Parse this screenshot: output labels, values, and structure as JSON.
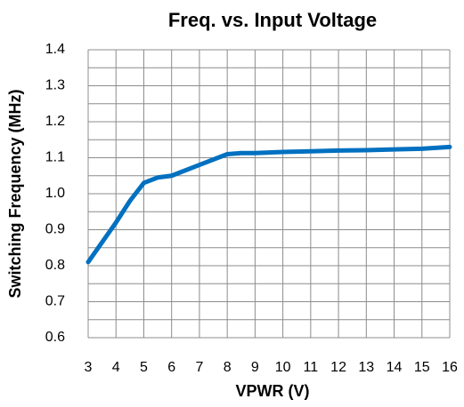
{
  "chart_data": {
    "type": "line",
    "title": "Freq. vs. Input Voltage",
    "xlabel": "VPWR (V)",
    "ylabel": "Switching Frequency (MHz)",
    "x": [
      3,
      4,
      4.5,
      5,
      5.5,
      6,
      7,
      8,
      8.5,
      9,
      10,
      11,
      12,
      13,
      14,
      15,
      16
    ],
    "series": [
      {
        "name": "Switching Frequency",
        "color": "#0070c0",
        "values": [
          0.81,
          0.92,
          0.98,
          1.03,
          1.045,
          1.05,
          1.08,
          1.11,
          1.113,
          1.113,
          1.116,
          1.118,
          1.12,
          1.121,
          1.123,
          1.125,
          1.13
        ]
      }
    ],
    "xlim": [
      3,
      16
    ],
    "xticks": [
      3,
      4,
      5,
      6,
      7,
      8,
      9,
      10,
      11,
      12,
      13,
      14,
      15,
      16
    ],
    "ylim": [
      0.6,
      1.4
    ],
    "yticks": [
      0.6,
      0.7,
      0.8,
      0.9,
      {
        "value": 1,
        "label": "1.0"
      },
      1.1,
      1.2,
      1.3,
      1.4
    ],
    "yminor": [
      0.65,
      0.75,
      0.85,
      0.95,
      1.05,
      1.15,
      1.25,
      1.35
    ],
    "grid": true
  }
}
